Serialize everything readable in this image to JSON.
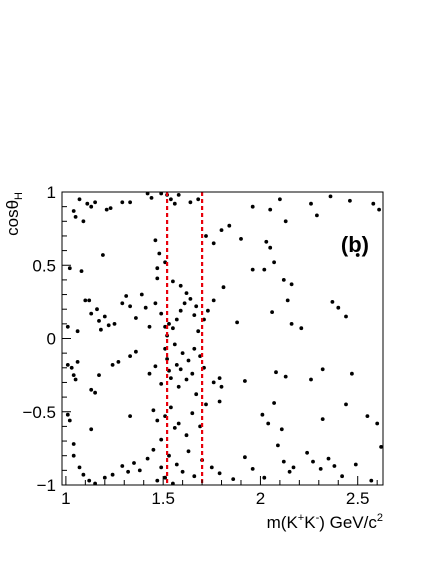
{
  "chart_data": {
    "type": "scatter",
    "panel_label": "(b)",
    "xlabel": "m(K⁺K⁻) GeV/c²",
    "ylabel": "cosθH",
    "xlim": [
      0.98,
      2.63
    ],
    "ylim": [
      -1.0,
      1.0
    ],
    "x_ticks": [
      1,
      1.5,
      2,
      2.5
    ],
    "x_tick_labels": [
      "1",
      "1.5",
      "2",
      "2.5"
    ],
    "y_ticks": [
      -1,
      -0.5,
      0,
      0.5,
      1
    ],
    "y_tick_labels": [
      "−1",
      "−0.5",
      "0",
      "0.5",
      "1"
    ],
    "grid": false,
    "legend": "none",
    "cut_lines": {
      "x": [
        1.52,
        1.7
      ],
      "color": "#e8000b",
      "style": "dashed"
    },
    "marker_color": "#000000",
    "points": [
      [
        1.02,
        0.48
      ],
      [
        1.04,
        0.87
      ],
      [
        1.05,
        0.83
      ],
      [
        1.07,
        0.95
      ],
      [
        1.08,
        0.46
      ],
      [
        1.09,
        0.8
      ],
      [
        1.11,
        0.92
      ],
      [
        1.13,
        0.9
      ],
      [
        1.15,
        0.93
      ],
      [
        1.19,
        0.57
      ],
      [
        1.21,
        0.88
      ],
      [
        1.23,
        0.89
      ],
      [
        1.29,
        0.93
      ],
      [
        1.33,
        0.93
      ],
      [
        1.42,
        0.99
      ],
      [
        1.44,
        0.96
      ],
      [
        1.49,
        0.99
      ],
      [
        1.52,
        0.98
      ],
      [
        1.54,
        0.95
      ],
      [
        1.56,
        0.92
      ],
      [
        1.58,
        0.98
      ],
      [
        1.64,
        0.93
      ],
      [
        1.68,
        0.95
      ],
      [
        1.72,
        0.7
      ],
      [
        1.76,
        0.65
      ],
      [
        1.8,
        0.74
      ],
      [
        1.84,
        0.77
      ],
      [
        1.9,
        0.68
      ],
      [
        1.96,
        0.9
      ],
      [
        2.05,
        0.88
      ],
      [
        2.1,
        0.95
      ],
      [
        2.13,
        0.8
      ],
      [
        2.26,
        0.92
      ],
      [
        2.29,
        0.84
      ],
      [
        2.36,
        0.97
      ],
      [
        2.46,
        0.94
      ],
      [
        2.58,
        0.92
      ],
      [
        2.61,
        0.88
      ],
      [
        1.46,
        0.67
      ],
      [
        1.48,
        0.58
      ],
      [
        1.47,
        0.48
      ],
      [
        1.51,
        0.52
      ],
      [
        1.47,
        0.41
      ],
      [
        1.55,
        0.39
      ],
      [
        1.59,
        0.36
      ],
      [
        1.96,
        0.47
      ],
      [
        2.03,
        0.66
      ],
      [
        2.05,
        0.62
      ],
      [
        2.07,
        0.52
      ],
      [
        2.12,
        0.4
      ],
      [
        2.16,
        0.37
      ],
      [
        2.5,
        0.57
      ],
      [
        2.02,
        0.47
      ],
      [
        1.01,
        0.08
      ],
      [
        1.06,
        0.05
      ],
      [
        1.1,
        0.26
      ],
      [
        1.12,
        0.26
      ],
      [
        1.13,
        0.17
      ],
      [
        1.16,
        0.2
      ],
      [
        1.17,
        0.12
      ],
      [
        1.18,
        0.06
      ],
      [
        1.2,
        0.15
      ],
      [
        1.22,
        0.09
      ],
      [
        1.25,
        0.1
      ],
      [
        1.29,
        0.24
      ],
      [
        1.31,
        0.29
      ],
      [
        1.33,
        0.22
      ],
      [
        1.36,
        0.14
      ],
      [
        1.39,
        0.3
      ],
      [
        1.41,
        0.21
      ],
      [
        1.43,
        0.08
      ],
      [
        1.46,
        0.24
      ],
      [
        1.49,
        0.17
      ],
      [
        1.51,
        0.08
      ],
      [
        1.52,
        0.02
      ],
      [
        1.53,
        0.1
      ],
      [
        1.55,
        0.07
      ],
      [
        1.57,
        0.13
      ],
      [
        1.59,
        0.19
      ],
      [
        1.61,
        0.24
      ],
      [
        1.62,
        0.31
      ],
      [
        1.64,
        0.27
      ],
      [
        1.66,
        0.16
      ],
      [
        1.67,
        0.22
      ],
      [
        1.68,
        0.05
      ],
      [
        1.71,
        0.13
      ],
      [
        1.73,
        0.19
      ],
      [
        1.76,
        0.26
      ],
      [
        1.81,
        0.35
      ],
      [
        1.88,
        0.11
      ],
      [
        2.06,
        0.18
      ],
      [
        2.14,
        0.26
      ],
      [
        2.16,
        0.1
      ],
      [
        2.21,
        0.07
      ],
      [
        2.37,
        0.25
      ],
      [
        2.4,
        0.21
      ],
      [
        2.44,
        0.15
      ],
      [
        1.01,
        -0.18
      ],
      [
        1.03,
        -0.2
      ],
      [
        1.04,
        -0.25
      ],
      [
        1.05,
        -0.28
      ],
      [
        1.06,
        -0.16
      ],
      [
        1.13,
        -0.35
      ],
      [
        1.15,
        -0.37
      ],
      [
        1.17,
        -0.25
      ],
      [
        1.24,
        -0.18
      ],
      [
        1.27,
        -0.16
      ],
      [
        1.33,
        -0.12
      ],
      [
        1.36,
        -0.09
      ],
      [
        1.43,
        -0.24
      ],
      [
        1.46,
        -0.19
      ],
      [
        1.49,
        -0.31
      ],
      [
        1.51,
        -0.07
      ],
      [
        1.52,
        -0.14
      ],
      [
        1.53,
        -0.22
      ],
      [
        1.54,
        -0.27
      ],
      [
        1.56,
        -0.04
      ],
      [
        1.57,
        -0.18
      ],
      [
        1.58,
        -0.33
      ],
      [
        1.59,
        -0.21
      ],
      [
        1.6,
        -0.1
      ],
      [
        1.62,
        -0.28
      ],
      [
        1.63,
        -0.15
      ],
      [
        1.65,
        -0.24
      ],
      [
        1.66,
        -0.07
      ],
      [
        1.67,
        -0.38
      ],
      [
        1.69,
        -0.12
      ],
      [
        1.71,
        -0.2
      ],
      [
        1.76,
        -0.3
      ],
      [
        1.79,
        -0.27
      ],
      [
        1.8,
        -0.33
      ],
      [
        1.92,
        -0.29
      ],
      [
        2.08,
        -0.23
      ],
      [
        2.13,
        -0.26
      ],
      [
        2.26,
        -0.28
      ],
      [
        2.32,
        -0.21
      ],
      [
        2.47,
        -0.24
      ],
      [
        1.01,
        -0.52
      ],
      [
        1.02,
        -0.56
      ],
      [
        1.04,
        -0.72
      ],
      [
        1.13,
        -0.62
      ],
      [
        1.33,
        -0.53
      ],
      [
        1.45,
        -0.49
      ],
      [
        1.47,
        -0.56
      ],
      [
        1.49,
        -0.69
      ],
      [
        1.51,
        -0.53
      ],
      [
        1.54,
        -0.47
      ],
      [
        1.56,
        -0.61
      ],
      [
        1.58,
        -0.58
      ],
      [
        1.62,
        -0.66
      ],
      [
        1.65,
        -0.51
      ],
      [
        1.69,
        -0.6
      ],
      [
        1.72,
        -0.45
      ],
      [
        1.79,
        -0.43
      ],
      [
        2.01,
        -0.52
      ],
      [
        2.04,
        -0.58
      ],
      [
        2.07,
        -0.44
      ],
      [
        2.11,
        -0.62
      ],
      [
        2.32,
        -0.55
      ],
      [
        2.44,
        -0.45
      ],
      [
        2.55,
        -0.53
      ],
      [
        2.6,
        -0.58
      ],
      [
        1.04,
        -0.8
      ],
      [
        1.07,
        -0.88
      ],
      [
        1.09,
        -0.93
      ],
      [
        1.12,
        -0.97
      ],
      [
        1.15,
        -0.99
      ],
      [
        1.2,
        -0.95
      ],
      [
        1.24,
        -0.93
      ],
      [
        1.29,
        -0.87
      ],
      [
        1.32,
        -0.91
      ],
      [
        1.35,
        -0.85
      ],
      [
        1.38,
        -0.9
      ],
      [
        1.42,
        -0.82
      ],
      [
        1.45,
        -0.76
      ],
      [
        1.47,
        -0.97
      ],
      [
        1.49,
        -0.88
      ],
      [
        1.51,
        -0.95
      ],
      [
        1.53,
        -0.8
      ],
      [
        1.55,
        -0.99
      ],
      [
        1.57,
        -0.86
      ],
      [
        1.6,
        -0.91
      ],
      [
        1.63,
        -0.77
      ],
      [
        1.66,
        -0.94
      ],
      [
        1.7,
        -0.83
      ],
      [
        1.75,
        -0.88
      ],
      [
        1.79,
        -0.92
      ],
      [
        1.86,
        -0.96
      ],
      [
        1.92,
        -0.81
      ],
      [
        1.96,
        -0.89
      ],
      [
        2.02,
        -0.95
      ],
      [
        2.09,
        -0.73
      ],
      [
        2.12,
        -0.84
      ],
      [
        2.15,
        -0.91
      ],
      [
        2.17,
        -0.88
      ],
      [
        2.24,
        -0.78
      ],
      [
        2.27,
        -0.84
      ],
      [
        2.31,
        -0.89
      ],
      [
        2.35,
        -0.82
      ],
      [
        2.38,
        -0.87
      ],
      [
        2.42,
        -0.94
      ],
      [
        2.49,
        -0.86
      ],
      [
        2.57,
        -0.97
      ],
      [
        2.62,
        -0.74
      ]
    ]
  }
}
